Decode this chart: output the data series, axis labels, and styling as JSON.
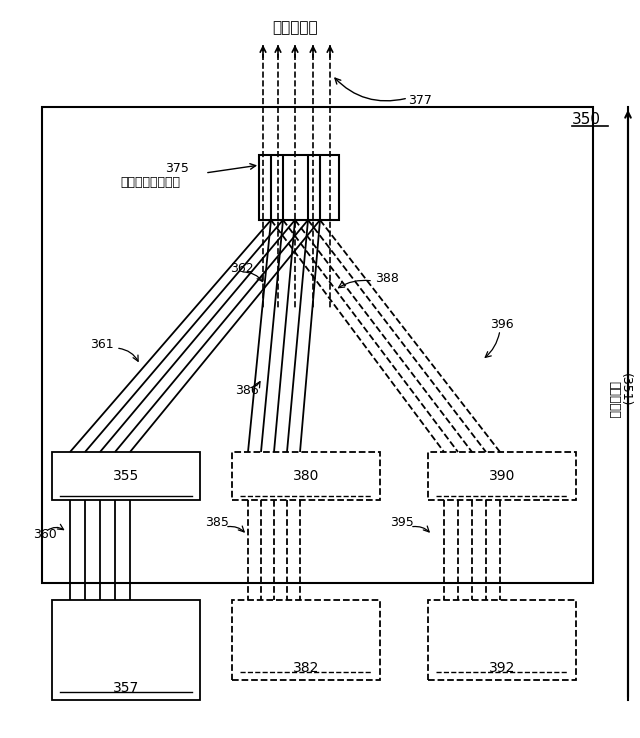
{
  "title_text": "熱反応器へ",
  "side_label": "連続反応流",
  "side_bracket_label": "(351)",
  "label_350": "350",
  "label_355": "355",
  "label_357": "357",
  "label_380": "380",
  "label_382": "382",
  "label_390": "390",
  "label_392": "392",
  "label_361": "361",
  "label_362": "362",
  "label_375": "375",
  "label_seg_gas": "セグメント化ガス",
  "label_377": "377",
  "label_386": "386",
  "label_388": "388",
  "label_396": "396",
  "label_360": "360",
  "label_385": "385",
  "label_395": "395"
}
